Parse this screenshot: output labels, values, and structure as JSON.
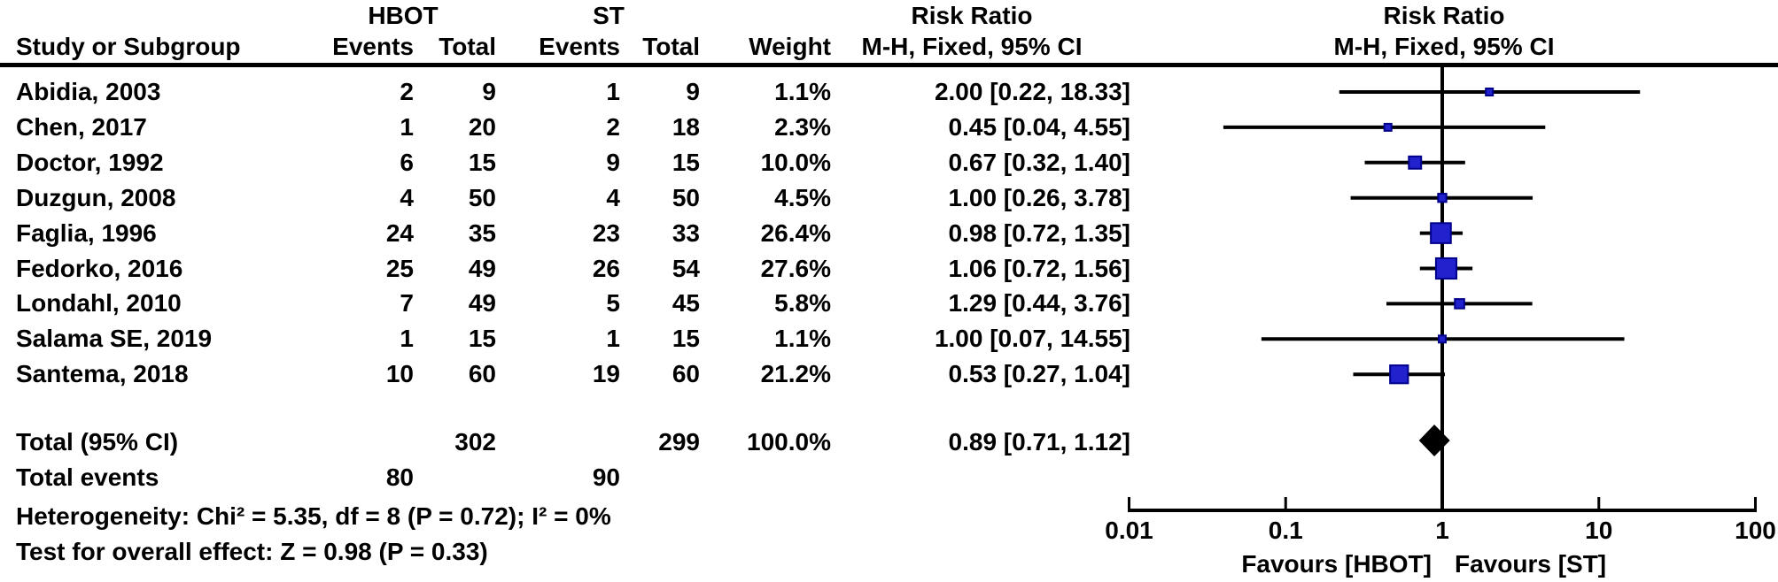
{
  "table": {
    "headers": {
      "group_hbot": "HBOT",
      "group_st": "ST",
      "col_study": "Study or Subgroup",
      "col_events_hbot": "Events",
      "col_total_hbot": "Total",
      "col_events_st": "Events",
      "col_total_st": "Total",
      "col_weight": "Weight",
      "col_rr_line1": "Risk Ratio",
      "col_rr_line2": "M-H, Fixed, 95% CI",
      "plot_title_line1": "Risk Ratio",
      "plot_title_line2": "M-H, Fixed, 95% CI"
    },
    "total_row": {
      "label": "Total (95% CI)",
      "total_hbot": "302",
      "total_st": "299",
      "weight_label": "100.0%",
      "rr_text": "0.89 [0.71, 1.12]"
    },
    "total_events_row": {
      "label": "Total events",
      "events_hbot": "80",
      "events_st": "90"
    },
    "heterogeneity": "Heterogeneity: Chi² = 5.35, df = 8 (P = 0.72); I² = 0%",
    "overall_effect": "Test for overall effect: Z = 0.98 (P = 0.33)"
  },
  "chart_data": {
    "type": "forest",
    "effect_measure": "Risk Ratio, M-H, Fixed, 95% CI",
    "x_scale": "log10",
    "xlim": [
      0.01,
      100
    ],
    "axis_ticks": [
      {
        "label": "0.01",
        "value": 0.01
      },
      {
        "label": "0.1",
        "value": 0.1
      },
      {
        "label": "1",
        "value": 1
      },
      {
        "label": "10",
        "value": 10
      },
      {
        "label": "100",
        "value": 100
      }
    ],
    "favours_left": "Favours [HBOT]",
    "favours_right": "Favours [ST]",
    "studies": [
      {
        "name": "Abidia, 2003",
        "events_hbot": 2,
        "total_hbot": 9,
        "events_st": 1,
        "total_st": 9,
        "weight_label": "1.1%",
        "rr": 2.0,
        "ci_low": 0.22,
        "ci_high": 18.33,
        "rr_text": "2.00 [0.22, 18.33]"
      },
      {
        "name": "Chen, 2017",
        "events_hbot": 1,
        "total_hbot": 20,
        "events_st": 2,
        "total_st": 18,
        "weight_label": "2.3%",
        "rr": 0.45,
        "ci_low": 0.04,
        "ci_high": 4.55,
        "rr_text": "0.45 [0.04, 4.55]"
      },
      {
        "name": "Doctor, 1992",
        "events_hbot": 6,
        "total_hbot": 15,
        "events_st": 9,
        "total_st": 15,
        "weight_label": "10.0%",
        "rr": 0.67,
        "ci_low": 0.32,
        "ci_high": 1.4,
        "rr_text": "0.67 [0.32, 1.40]"
      },
      {
        "name": "Duzgun, 2008",
        "events_hbot": 4,
        "total_hbot": 50,
        "events_st": 4,
        "total_st": 50,
        "weight_label": "4.5%",
        "rr": 1.0,
        "ci_low": 0.26,
        "ci_high": 3.78,
        "rr_text": "1.00 [0.26, 3.78]"
      },
      {
        "name": "Faglia, 1996",
        "events_hbot": 24,
        "total_hbot": 35,
        "events_st": 23,
        "total_st": 33,
        "weight_label": "26.4%",
        "rr": 0.98,
        "ci_low": 0.72,
        "ci_high": 1.35,
        "rr_text": "0.98 [0.72, 1.35]"
      },
      {
        "name": "Fedorko, 2016",
        "events_hbot": 25,
        "total_hbot": 49,
        "events_st": 26,
        "total_st": 54,
        "weight_label": "27.6%",
        "rr": 1.06,
        "ci_low": 0.72,
        "ci_high": 1.56,
        "rr_text": "1.06 [0.72, 1.56]"
      },
      {
        "name": "Londahl, 2010",
        "events_hbot": 7,
        "total_hbot": 49,
        "events_st": 5,
        "total_st": 45,
        "weight_label": "5.8%",
        "rr": 1.29,
        "ci_low": 0.44,
        "ci_high": 3.76,
        "rr_text": "1.29 [0.44, 3.76]"
      },
      {
        "name": "Salama SE, 2019",
        "events_hbot": 1,
        "total_hbot": 15,
        "events_st": 1,
        "total_st": 15,
        "weight_label": "1.1%",
        "rr": 1.0,
        "ci_low": 0.07,
        "ci_high": 14.55,
        "rr_text": "1.00 [0.07, 14.55]"
      },
      {
        "name": "Santema, 2018",
        "events_hbot": 10,
        "total_hbot": 60,
        "events_st": 19,
        "total_st": 60,
        "weight_label": "21.2%",
        "rr": 0.53,
        "ci_low": 0.27,
        "ci_high": 1.04,
        "rr_text": "0.53 [0.27, 1.04]"
      }
    ],
    "total": {
      "rr": 0.89,
      "ci_low": 0.71,
      "ci_high": 1.12
    },
    "colors": {
      "marker_fill": "#2121CE",
      "marker_border": "#00008B",
      "line": "#000000",
      "diamond": "#000000"
    }
  }
}
